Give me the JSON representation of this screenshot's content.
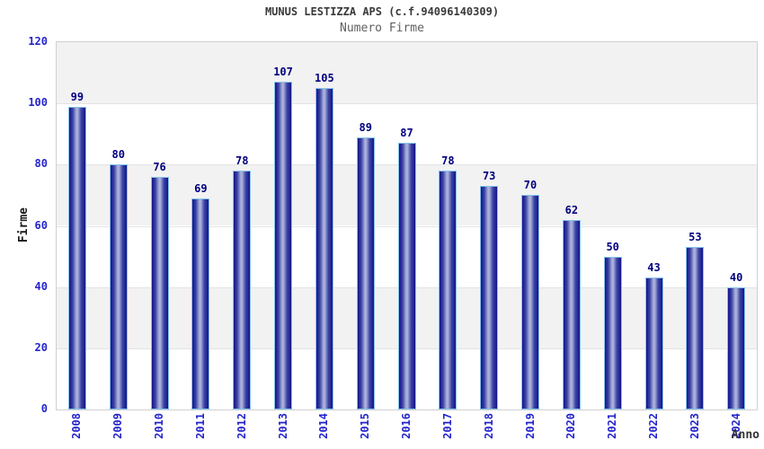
{
  "chart_data": {
    "type": "bar",
    "title": "MUNUS LESTIZZA APS (c.f.94096140309)",
    "subtitle": "Numero Firme",
    "xlabel": "Anno",
    "ylabel": "Firme",
    "categories": [
      "2008",
      "2009",
      "2010",
      "2011",
      "2012",
      "2013",
      "2014",
      "2015",
      "2016",
      "2017",
      "2018",
      "2019",
      "2020",
      "2021",
      "2022",
      "2023",
      "2024"
    ],
    "values": [
      99,
      80,
      76,
      69,
      78,
      107,
      105,
      89,
      87,
      78,
      73,
      70,
      62,
      50,
      43,
      53,
      40
    ],
    "ylim": [
      0,
      120
    ],
    "yticks": [
      0,
      20,
      40,
      60,
      80,
      100,
      120
    ],
    "grid": "alternating horizontal bands, gray band at top (100-120)",
    "legend_position": "none",
    "bar_labels_shown": true,
    "colors": {
      "bar_dark": "#141489",
      "bar_mid": "#3c44a5",
      "bar_light": "#aab0da",
      "bar_border": "#85c2ea",
      "tick_label": "#2424cc",
      "value_label": "#000080",
      "band_gray": "#f2f2f2",
      "plot_border": "#d0d0d0",
      "title": "#3a3a3a",
      "subtitle": "#5f5f5f",
      "axis_title": "#333333"
    }
  }
}
